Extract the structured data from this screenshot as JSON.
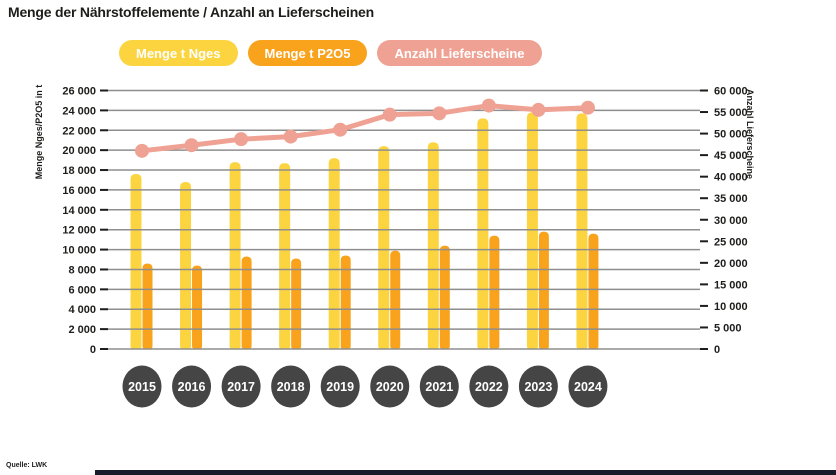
{
  "title": "Menge der Nährstoffelemente / Anzahl an Lieferscheinen",
  "source": "Quelle: LWK",
  "legend": {
    "items": [
      {
        "label": "Menge t Nges",
        "color": "#FCD440"
      },
      {
        "label": "Menge t P2O5",
        "color": "#F9A21B"
      },
      {
        "label": "Anzahl Lieferscheine",
        "color": "#EFA294"
      }
    ]
  },
  "colors": {
    "yellow": "#FCD440",
    "orange": "#F9A21B",
    "salmon": "#EFA294",
    "grid": "#8E8E8E",
    "text_dark": "#1d1d1b",
    "year_circle": "#454545",
    "year_text": "#ffffff",
    "footer_strip": "#191c2a"
  },
  "chart_data": {
    "type": "bar",
    "title": "Menge der Nährstoffelemente / Anzahl an Lieferscheinen",
    "categories": [
      "2015",
      "2016",
      "2017",
      "2018",
      "2019",
      "2020",
      "2021",
      "2022",
      "2023",
      "2024"
    ],
    "series": [
      {
        "name": "Menge t Nges",
        "kind": "bar",
        "axis": "left",
        "color": "#FCD440",
        "values": [
          17600,
          16800,
          18800,
          18700,
          19200,
          20400,
          20800,
          23200,
          23800,
          23700
        ]
      },
      {
        "name": "Menge t P2O5",
        "kind": "bar",
        "axis": "left",
        "color": "#F9A21B",
        "values": [
          8600,
          8400,
          9300,
          9100,
          9400,
          9900,
          10400,
          11400,
          11800,
          11600
        ]
      },
      {
        "name": "Anzahl Lieferscheine",
        "kind": "line",
        "axis": "right",
        "color": "#EFA294",
        "values": [
          46000,
          47300,
          48700,
          49300,
          50900,
          54400,
          54700,
          56500,
          55500,
          56000
        ]
      }
    ],
    "axes": {
      "left": {
        "title": "Menge Nges/P2O5 in t",
        "min": 0,
        "max": 26000,
        "step": 2000
      },
      "right": {
        "title": "Anzahl Lieferscheine",
        "min": 0,
        "max": 60000,
        "step": 5000
      }
    },
    "grid": true,
    "legend_position": "top",
    "xlabel": "",
    "ylabel_left": "Menge Nges/P2O5 in t",
    "ylabel_right": "Anzahl Lieferscheine"
  }
}
